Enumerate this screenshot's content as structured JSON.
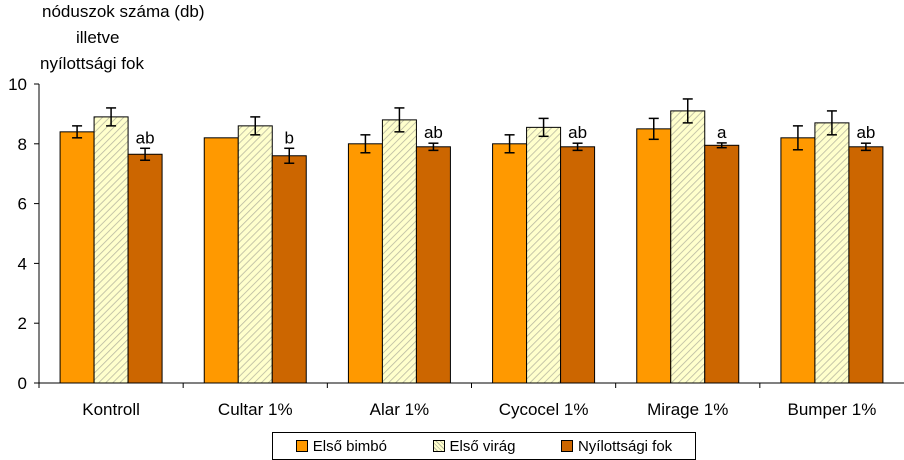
{
  "chart_data": {
    "type": "bar",
    "title": "",
    "ylabel_lines": [
      "nóduszok száma (db)",
      "illetve",
      "nyílottsági fok"
    ],
    "xlabel": "",
    "ylim": [
      0,
      10
    ],
    "yticks": [
      0,
      2,
      4,
      6,
      8,
      10
    ],
    "categories": [
      "Kontroll",
      "Cultar 1%",
      "Alar 1%",
      "Cycocel 1%",
      "Mirage 1%",
      "Bumper 1%"
    ],
    "series": [
      {
        "name": "Első bimbó",
        "color": "#ff9900",
        "pattern": "solid",
        "values": [
          8.4,
          8.2,
          8.0,
          8.0,
          8.5,
          8.2
        ],
        "errors": [
          0.2,
          0.0,
          0.3,
          0.3,
          0.35,
          0.4
        ]
      },
      {
        "name": "Első virág",
        "color": "#ffffcc",
        "pattern": "hatch",
        "values": [
          8.9,
          8.6,
          8.8,
          8.55,
          9.1,
          8.7
        ],
        "errors": [
          0.3,
          0.3,
          0.4,
          0.3,
          0.4,
          0.4
        ]
      },
      {
        "name": "Nyílottsági fok",
        "color": "#cc6600",
        "pattern": "solid",
        "values": [
          7.65,
          7.6,
          7.9,
          7.9,
          7.95,
          7.9
        ],
        "errors": [
          0.2,
          0.25,
          0.12,
          0.12,
          0.08,
          0.12
        ],
        "labels": [
          "ab",
          "b",
          "ab",
          "ab",
          "a",
          "ab"
        ]
      }
    ],
    "legend_position": "bottom"
  }
}
